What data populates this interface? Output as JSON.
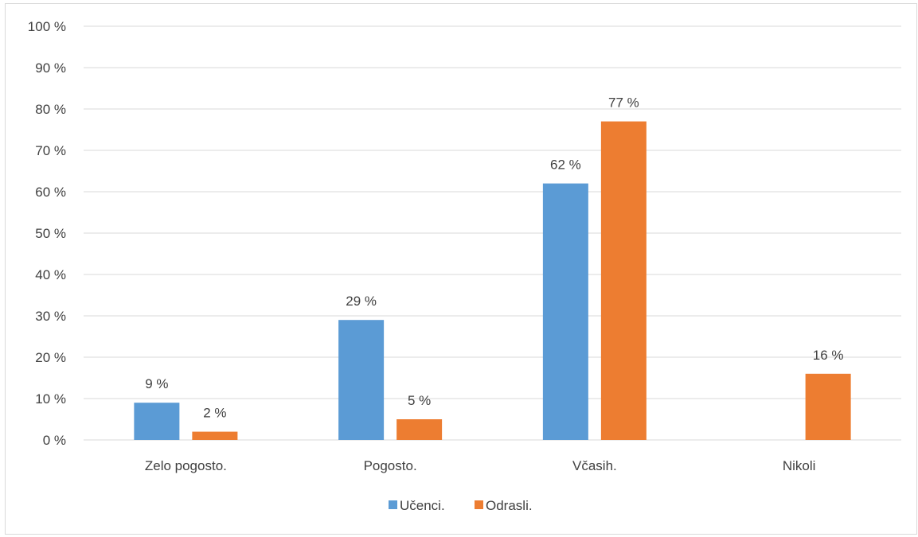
{
  "chart_data": {
    "type": "bar",
    "categories": [
      "Zelo pogosto.",
      "Pogosto.",
      "Včasih.",
      "Nikoli"
    ],
    "series": [
      {
        "name": "Učenci.",
        "values": [
          9,
          29,
          62,
          null
        ],
        "color": "#5b9bd5"
      },
      {
        "name": "Odrasli.",
        "values": [
          2,
          5,
          77,
          16
        ],
        "color": "#ed7d31"
      }
    ],
    "ylim": [
      0,
      100
    ],
    "yticks": [
      0,
      10,
      20,
      30,
      40,
      50,
      60,
      70,
      80,
      90,
      100
    ],
    "ytick_labels": [
      "0 %",
      "10 %",
      "20 %",
      "30 %",
      "40 %",
      "50 %",
      "60 %",
      "70 %",
      "80 %",
      "90 %",
      "100 %"
    ],
    "data_labels": [
      [
        "9 %",
        "29 %",
        "62 %",
        ""
      ],
      [
        "2 %",
        "5 %",
        "77 %",
        "16 %"
      ]
    ],
    "title": "",
    "xlabel": "",
    "ylabel": "",
    "grid": "horizontal",
    "legend_position": "bottom",
    "gridline_color": "#d9d9d9"
  }
}
